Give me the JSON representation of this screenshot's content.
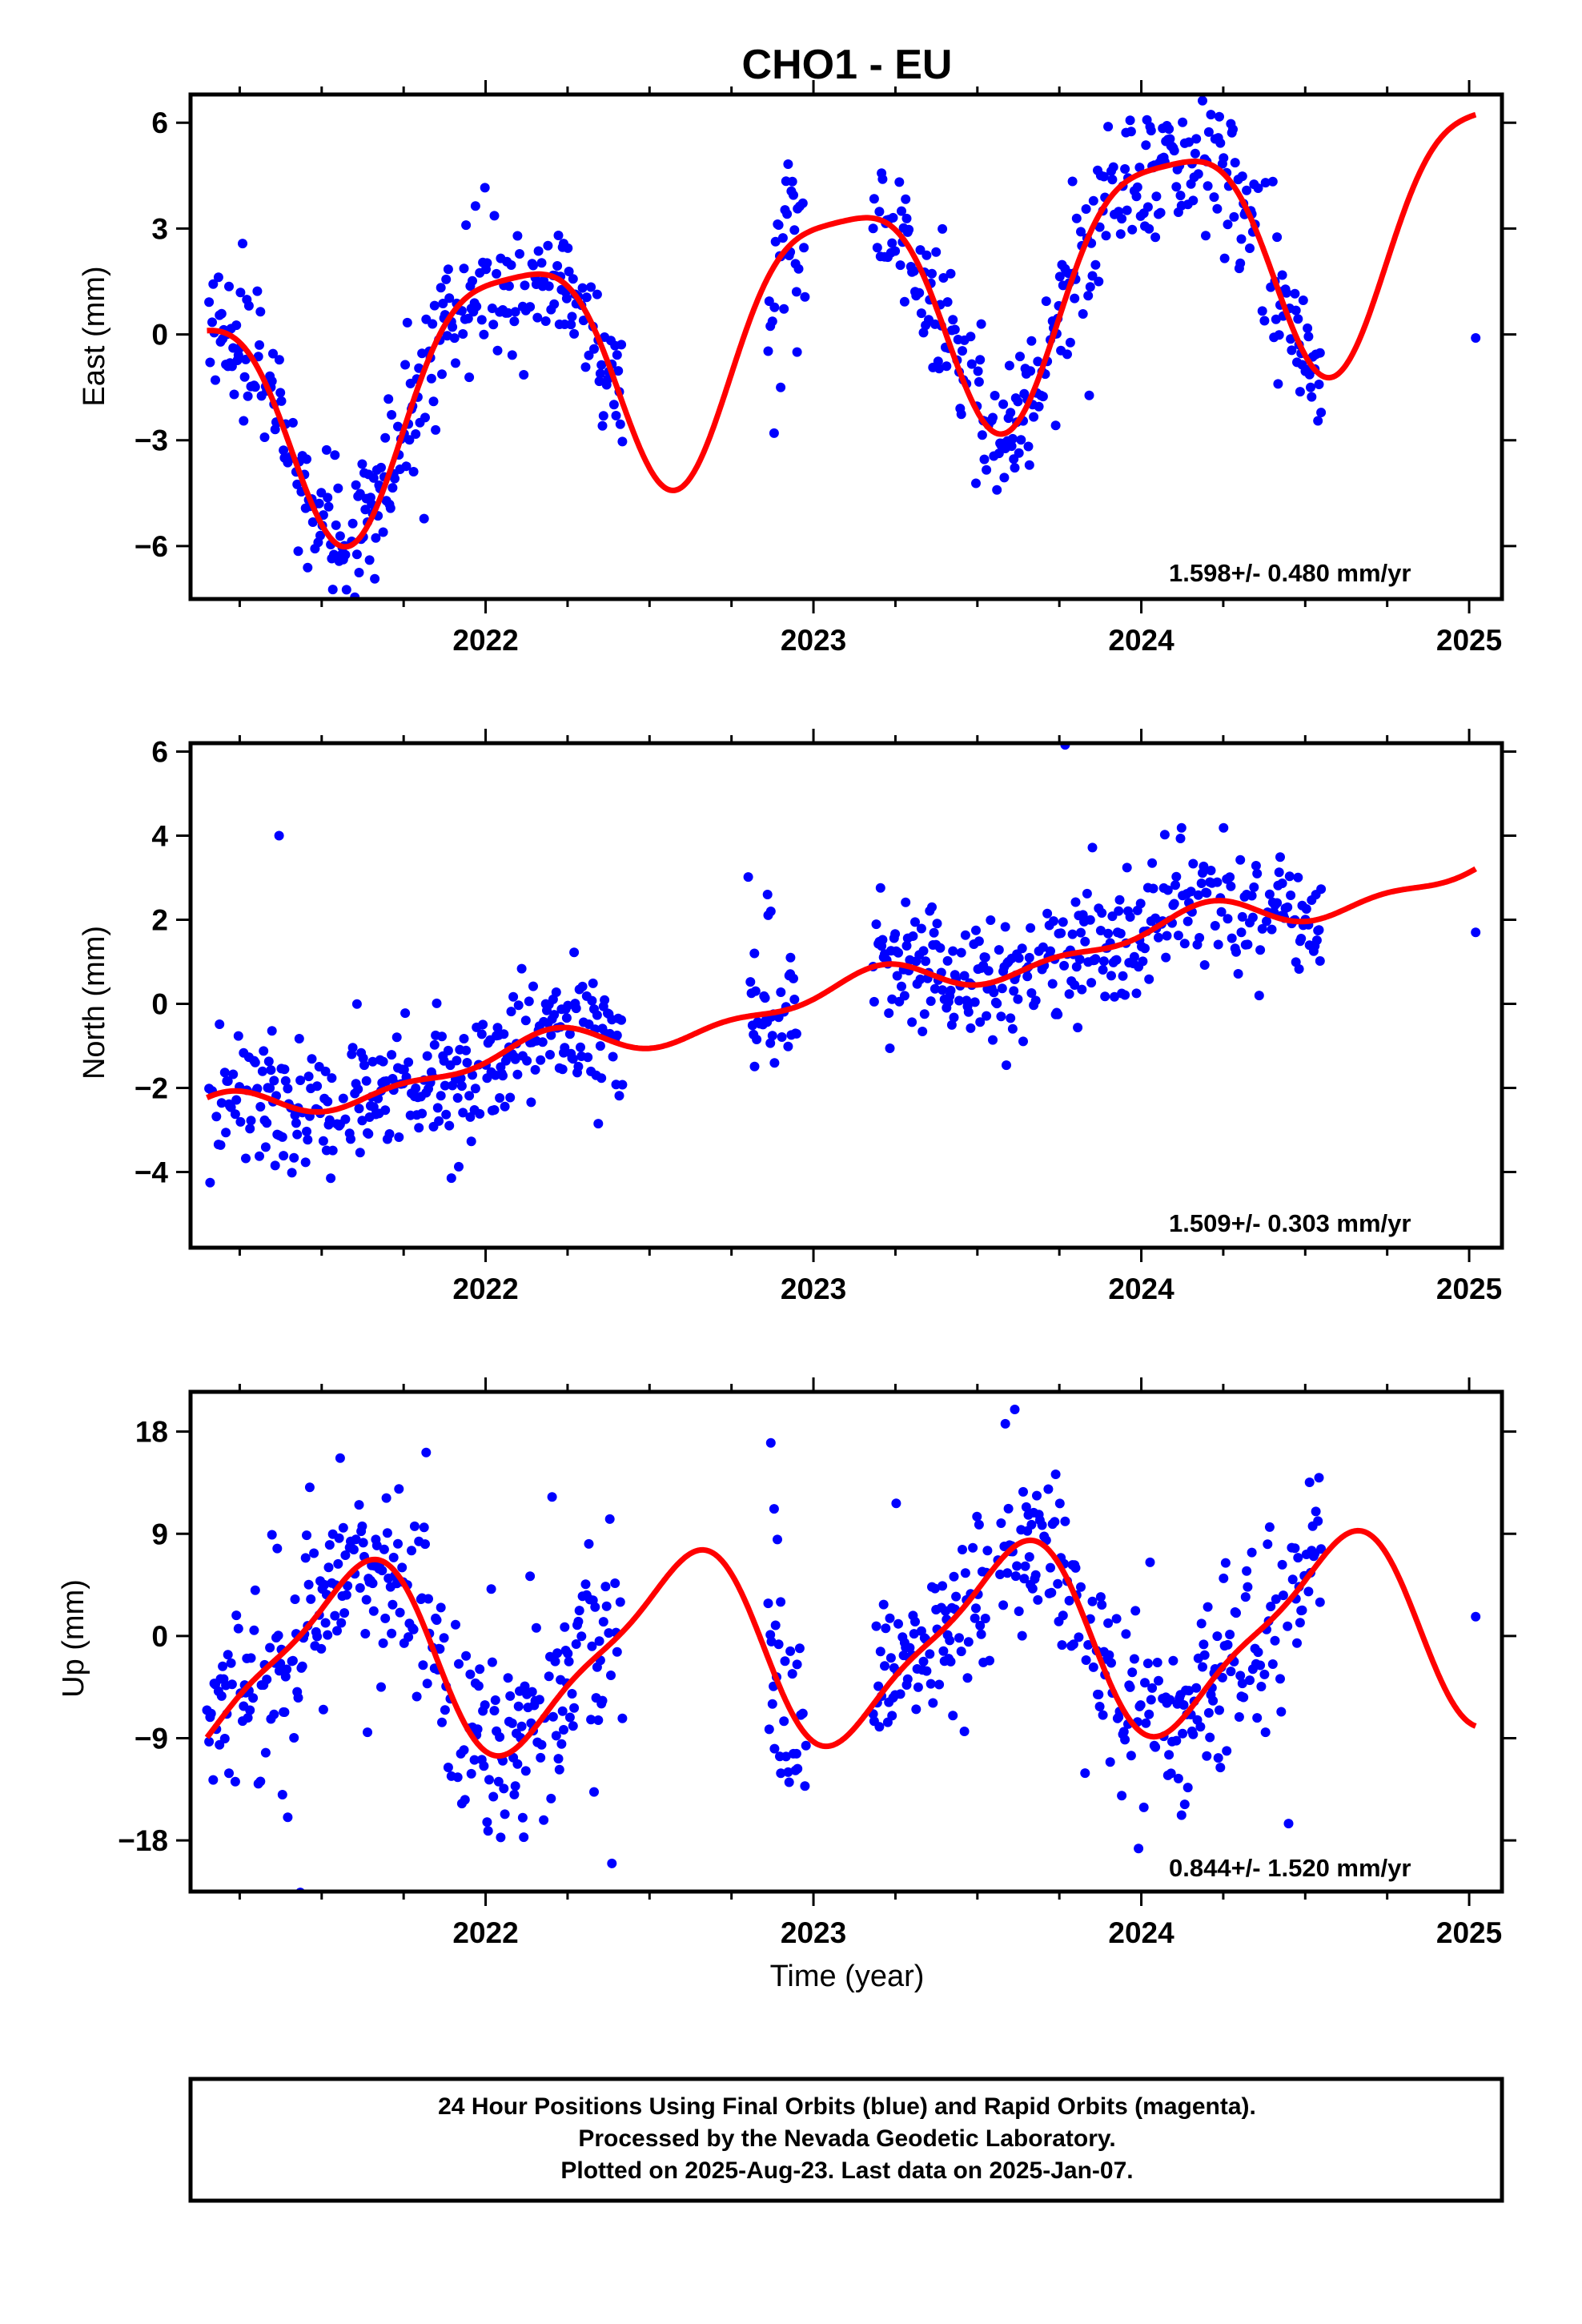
{
  "colors": {
    "points": "#0000ff",
    "fit": "#ff0000",
    "frame": "#000000"
  },
  "title": "CHO1 - EU",
  "xlabel": "Time (year)",
  "footer": [
    "24 Hour Positions Using Final Orbits (blue) and Rapid Orbits (magenta).",
    "Processed by the Nevada Geodetic Laboratory.",
    "Plotted on 2025-Aug-23. Last data on 2025-Jan-07."
  ],
  "chart_data": [
    {
      "type": "scatter",
      "ylabel": "East (mm)",
      "rate_label": "1.598+/- 0.480 mm/yr",
      "xlim": [
        2021.1,
        2025.1
      ],
      "ylim": [
        -7.5,
        6.8
      ],
      "xticks": [
        2022,
        2023,
        2024,
        2025
      ],
      "yticks": [
        6,
        3,
        0,
        -3,
        -6
      ],
      "ytick_labels": [
        "6",
        "3",
        "0",
        "−3",
        "−6"
      ],
      "fit_spec": {
        "a": -2.5,
        "b": 1.598,
        "t0": 2021.15,
        "amp": 3.4,
        "phase": 0.83,
        "amp2": 0.8,
        "phase2": 0.2
      },
      "fit_range": [
        2021.15,
        2025.02
      ],
      "scatter_spec": {
        "noise": 1.0,
        "outlier_rate": 0.03
      },
      "gaps": [
        [
          2022.42,
          2022.86
        ],
        [
          2022.98,
          2023.18
        ],
        [
          2024.55,
          2025.0
        ]
      ],
      "isolated_points": [
        [
          2022.88,
          -2.8
        ],
        [
          2022.9,
          -1.5
        ],
        [
          2022.95,
          -0.5
        ],
        [
          2025.02,
          -0.1
        ]
      ]
    },
    {
      "type": "scatter",
      "ylabel": "North (mm)",
      "rate_label": "1.509+/- 0.303 mm/yr",
      "xlim": [
        2021.1,
        2025.1
      ],
      "ylim": [
        -5.8,
        6.2
      ],
      "xticks": [
        2022,
        2023,
        2024,
        2025
      ],
      "yticks": [
        6,
        4,
        2,
        0,
        -2,
        -4
      ],
      "ytick_labels": [
        "6",
        "4",
        "2",
        "0",
        "−2",
        "−4"
      ],
      "fit_spec": {
        "a": -2.7,
        "b": 1.509,
        "t0": 2021.15,
        "amp": 0.35,
        "phase": 0.9,
        "amp2": 0.2,
        "phase2": 0.1
      },
      "fit_range": [
        2021.15,
        2025.02
      ],
      "scatter_spec": {
        "noise": 0.75,
        "outlier_rate": 0.02
      },
      "gaps": [
        [
          2022.42,
          2022.8
        ],
        [
          2022.95,
          2023.18
        ],
        [
          2024.55,
          2025.0
        ]
      ],
      "isolated_points": [
        [
          2022.82,
          1.2
        ],
        [
          2022.86,
          2.6
        ],
        [
          2022.87,
          2.2
        ],
        [
          2022.93,
          1.1
        ],
        [
          2021.37,
          4.0
        ],
        [
          2025.02,
          1.7
        ]
      ]
    },
    {
      "type": "scatter",
      "ylabel": "Up (mm)",
      "rate_label": "0.844+/- 1.520 mm/yr",
      "xlim": [
        2021.1,
        2025.1
      ],
      "ylim": [
        -22.5,
        21.5
      ],
      "xticks": [
        2022,
        2023,
        2024,
        2025
      ],
      "yticks": [
        18,
        9,
        0,
        -9,
        -18
      ],
      "ytick_labels": [
        "18",
        "9",
        "0",
        "−9",
        "−18"
      ],
      "fit_spec": {
        "a": -2.5,
        "b": 0.844,
        "t0": 2021.15,
        "amp": 8.0,
        "phase": 0.35,
        "amp2": 2.0,
        "phase2": 0.6
      },
      "fit_range": [
        2021.15,
        2025.02
      ],
      "scatter_spec": {
        "noise": 4.2,
        "outlier_rate": 0.05
      },
      "gaps": [
        [
          2022.42,
          2022.86
        ],
        [
          2022.98,
          2023.18
        ],
        [
          2024.55,
          2025.0
        ]
      ],
      "isolated_points": [
        [
          2022.87,
          17.0
        ],
        [
          2022.88,
          11.2
        ],
        [
          2022.89,
          8.5
        ],
        [
          2022.9,
          3.0
        ],
        [
          2022.95,
          -2.5
        ],
        [
          2025.02,
          1.7
        ]
      ]
    }
  ]
}
